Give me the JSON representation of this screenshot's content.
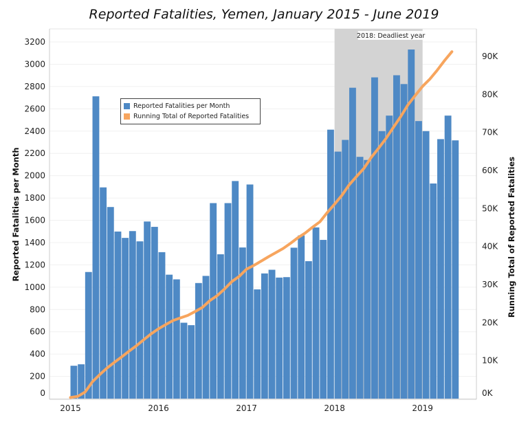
{
  "chart_data": {
    "type": "bar+line",
    "title": "Reported Fatalities, Yemen, January 2015 - June 2019",
    "ylabel": "Reported Fatalities per Month",
    "y2label": "Running Total of Reported Fatalities",
    "ylim": [
      0,
      3200
    ],
    "y2lim": [
      0,
      93800
    ],
    "yticks": [
      0,
      200,
      400,
      600,
      800,
      1000,
      1200,
      1400,
      1600,
      1800,
      2000,
      2200,
      2400,
      2600,
      2800,
      3000,
      3200
    ],
    "y2ticks": [
      "0K",
      "10K",
      "20K",
      "30K",
      "40K",
      "50K",
      "60K",
      "70K",
      "80K",
      "90K"
    ],
    "xticks": [
      "2015",
      "2016",
      "2017",
      "2018",
      "2019"
    ],
    "grid": true,
    "legend_placement": "upper-left",
    "start_month": "2015-01",
    "series": [
      {
        "name": "Reported Fatalities per Month",
        "type": "bar",
        "color": "#4e89c5",
        "values": [
          295,
          308,
          1136,
          2712,
          1895,
          1719,
          1499,
          1442,
          1503,
          1411,
          1589,
          1541,
          1314,
          1112,
          1070,
          681,
          659,
          1037,
          1101,
          1754,
          1295,
          1754,
          1952,
          1356,
          1921,
          980,
          1123,
          1156,
          1086,
          1090,
          1354,
          1464,
          1233,
          1536,
          1424,
          2413,
          2216,
          2321,
          2789,
          2169,
          2141,
          2882,
          2400,
          2539,
          2901,
          2822,
          3132,
          2490,
          2400,
          1930,
          2328,
          2539,
          2317
        ]
      },
      {
        "name": "Running Total of Reported Fatalities",
        "type": "line",
        "color": "#f7a55e",
        "values": [
          295,
          603,
          1739,
          4451,
          6346,
          8065,
          9564,
          11006,
          12509,
          13920,
          15509,
          17050,
          18364,
          19476,
          20546,
          21227,
          21886,
          22923,
          24024,
          25778,
          27073,
          28827,
          30779,
          32135,
          34056,
          35036,
          36159,
          37315,
          38401,
          39491,
          40845,
          42309,
          43542,
          45078,
          46502,
          48915,
          51131,
          53452,
          56241,
          58410,
          60551,
          63433,
          65833,
          68372,
          71273,
          74095,
          77227,
          79717,
          82117,
          84047,
          86375,
          88914,
          91231
        ]
      }
    ],
    "annotation": {
      "label": "2018: Deadliest year",
      "from": "2018-01",
      "to": "2018-12",
      "color": "#d3d3d3"
    }
  }
}
